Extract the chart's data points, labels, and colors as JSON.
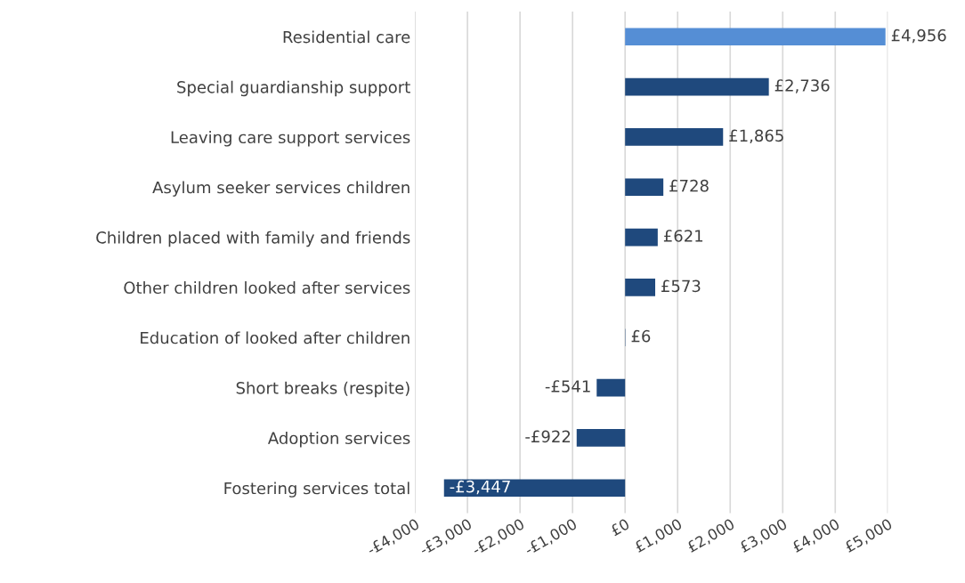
{
  "chart_data": {
    "type": "bar",
    "orientation": "horizontal",
    "categories": [
      "Residential care",
      "Special guardianship support",
      "Leaving care support services",
      "Asylum seeker services children",
      "Children placed with family and friends",
      "Other children looked after services",
      "Education of looked after children",
      "Short breaks (respite)",
      "Adoption services",
      "Fostering services total"
    ],
    "values": [
      4956,
      2736,
      1865,
      728,
      621,
      573,
      6,
      -541,
      -922,
      -3447
    ],
    "colors": [
      "#558ed5",
      "#1f497d",
      "#1f497d",
      "#1f497d",
      "#1f497d",
      "#1f497d",
      "#1f497d",
      "#1f497d",
      "#1f497d",
      "#1f497d"
    ],
    "value_labels": [
      "£4,956",
      "£2,736",
      "£1,865",
      "£728",
      "£621",
      "£573",
      "£6",
      "-£541",
      "-£922",
      "-£3,447"
    ],
    "xlim": [
      -4000,
      5000
    ],
    "xticks": [
      {
        "value": -4000,
        "label": "-£4,000"
      },
      {
        "value": -3000,
        "label": "-£3,000"
      },
      {
        "value": -2000,
        "label": "-£2,000"
      },
      {
        "value": -1000,
        "label": "-£1,000"
      },
      {
        "value": 0,
        "label": "£0"
      },
      {
        "value": 1000,
        "label": "£1,000"
      },
      {
        "value": 2000,
        "label": "£2,000"
      },
      {
        "value": 3000,
        "label": "£3,000"
      },
      {
        "value": 4000,
        "label": "£4,000"
      },
      {
        "value": 5000,
        "label": "£5,000"
      }
    ],
    "grid": "x"
  }
}
